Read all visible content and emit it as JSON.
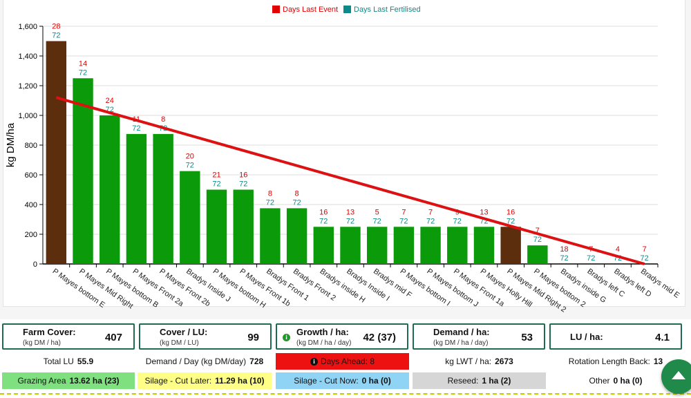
{
  "chart_data": {
    "type": "bar",
    "ylabel": "kg DM/ha",
    "ylim": [
      0,
      1600
    ],
    "yticks": [
      "0",
      "200",
      "400",
      "600",
      "800",
      "1,000",
      "1,200",
      "1,400",
      "1,600"
    ],
    "ytick_values": [
      0,
      200,
      400,
      600,
      800,
      1000,
      1200,
      1400,
      1600
    ],
    "grid": true,
    "legend_position": "top-center",
    "legend": [
      {
        "name": "Days Last Event",
        "color": "#e00000"
      },
      {
        "name": "Days Last Fertilised",
        "color": "#0a8a8a"
      }
    ],
    "categories": [
      "P Mayes bottom E",
      "P Mayes Mid Right",
      "P Mayes bottom B",
      "P Mayes Front 2a",
      "P Mayes Front 2b",
      "Bradys Inside J",
      "P Mayes bottom H",
      "P Mayes Front 1b",
      "Bradys Front 1",
      "Bradys Front 2",
      "Bradys inside H",
      "Bradys Inside I",
      "Bradys mid F",
      "P Mayes bottom I",
      "P Mayes bottom J",
      "P Mayes Front 1a",
      "P Mayes Holly Hill",
      "P Mayes Mid Right 2",
      "P Mayes bottom 2",
      "Bradys inside G",
      "Bradys left C",
      "Bradys left D",
      "Bradys mid E"
    ],
    "values": [
      1500,
      1250,
      1000,
      875,
      875,
      625,
      500,
      500,
      375,
      375,
      250,
      250,
      250,
      250,
      250,
      250,
      250,
      250,
      125,
      0,
      0,
      0,
      0
    ],
    "bar_colors": [
      "#5c2e0e",
      "#0a9a0a",
      "#0a9a0a",
      "#0a9a0a",
      "#0a9a0a",
      "#0a9a0a",
      "#0a9a0a",
      "#0a9a0a",
      "#0a9a0a",
      "#0a9a0a",
      "#0a9a0a",
      "#0a9a0a",
      "#0a9a0a",
      "#0a9a0a",
      "#0a9a0a",
      "#0a9a0a",
      "#0a9a0a",
      "#5c2e0e",
      "#0a9a0a",
      "#0a9a0a",
      "#0a9a0a",
      "#0a9a0a",
      "#0a9a0a"
    ],
    "days_last_event": [
      "28",
      "14",
      "24",
      "11",
      "8",
      "20",
      "21",
      "16",
      "8",
      "8",
      "16",
      "13",
      "5",
      "7",
      "7",
      "9",
      "13",
      "16",
      "7",
      "18",
      "7",
      "4",
      "7"
    ],
    "days_last_fertilised": [
      "72",
      "72",
      "72",
      "72",
      "72",
      "72",
      "72",
      "72",
      "72",
      "72",
      "72",
      "72",
      "72",
      "72",
      "72",
      "72",
      "72",
      "72",
      "72",
      "72",
      "72",
      "72",
      "72"
    ],
    "target_line": {
      "color": "#dd1111",
      "start_value": 1120,
      "end_value": 0
    }
  },
  "stats": {
    "farm_cover": {
      "label": "Farm Cover:",
      "sub": "(kg DM / ha)",
      "value": "407"
    },
    "cover_lu": {
      "label": "Cover / LU:",
      "sub": "(kg DM / LU)",
      "value": "99"
    },
    "growth": {
      "label": "Growth / ha:",
      "sub": "(kg DM / ha / day)",
      "value": "42 (37)"
    },
    "demand": {
      "label": "Demand / ha:",
      "sub": "(kg DM / ha / day)",
      "value": "53"
    },
    "lu_ha": {
      "label": "LU / ha:",
      "value": "4.1"
    }
  },
  "row2": {
    "total_lu_label": "Total LU",
    "total_lu_value": "55.9",
    "demand_day_label": "Demand / Day (kg DM/day)",
    "demand_day_value": "728",
    "days_ahead_text": "Days Ahead: 8",
    "kg_lwt_label": "kg LWT / ha:",
    "kg_lwt_value": "2673",
    "rotation_label": "Rotation Length Back:",
    "rotation_value": "13"
  },
  "row3": {
    "grazing_label": "Grazing Area",
    "grazing_value": "13.62 ha (23)",
    "silage_later_label": "Silage - Cut Later:",
    "silage_later_value": "11.29 ha (10)",
    "silage_now_label": "Silage - Cut Now:",
    "silage_now_value": "0 ha (0)",
    "reseed_label": "Reseed:",
    "reseed_value": "1 ha (2)",
    "other_label": "Other",
    "other_value": "0 ha (0)"
  },
  "colors": {
    "grazing_bg": "#7fe07f",
    "silage_later_bg": "#ffff88",
    "silage_now_bg": "#8fd4f5",
    "reseed_bg": "#d6d6d6",
    "days_ahead_bg": "#ee1111",
    "stat_border": "#1f6b4f",
    "info_green": "#1e9a2a"
  }
}
